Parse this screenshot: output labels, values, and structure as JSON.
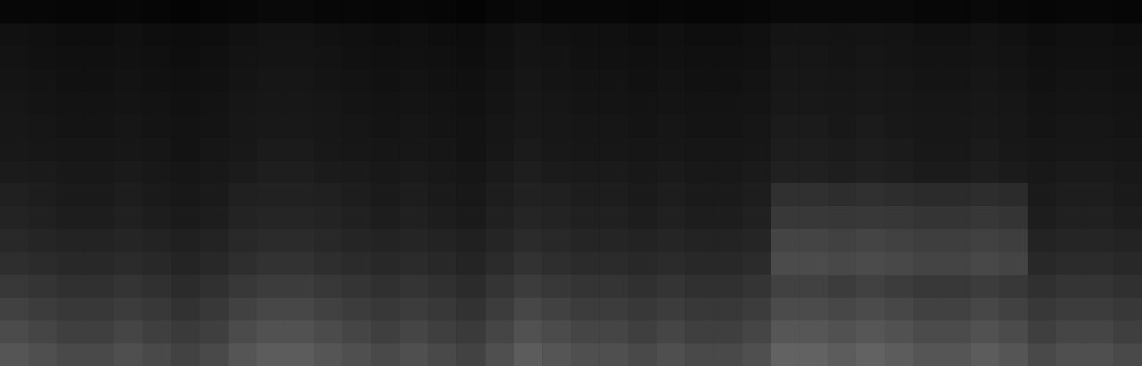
{
  "chart_data": {
    "type": "heatmap",
    "tick_labels": false,
    "color": "#909090",
    "color_range": [
      0,
      100
    ],
    "cells": [
      [
        59,
        55,
        51,
        51,
        55,
        51,
        46,
        51,
        59,
        64,
        64,
        59,
        55,
        51,
        55,
        51,
        46,
        55,
        64,
        59,
        55,
        55,
        51,
        55,
        51,
        51,
        55,
        68,
        68,
        64,
        68,
        64,
        59,
        59,
        64,
        59,
        51,
        55,
        55,
        51
      ],
      [
        52,
        48,
        44,
        44,
        48,
        44,
        40,
        44,
        52,
        56,
        56,
        52,
        48,
        44,
        48,
        44,
        40,
        48,
        56,
        52,
        48,
        48,
        44,
        48,
        44,
        44,
        48,
        60,
        60,
        56,
        60,
        56,
        52,
        52,
        56,
        52,
        44,
        48,
        48,
        44
      ],
      [
        45,
        42,
        39,
        39,
        42,
        39,
        35,
        39,
        45,
        49,
        49,
        45,
        42,
        39,
        42,
        39,
        35,
        42,
        49,
        45,
        42,
        42,
        39,
        42,
        39,
        39,
        42,
        52,
        52,
        49,
        52,
        49,
        45,
        45,
        49,
        45,
        39,
        42,
        42,
        39
      ],
      [
        39,
        36,
        33,
        33,
        36,
        33,
        30,
        33,
        39,
        42,
        42,
        39,
        36,
        33,
        36,
        33,
        30,
        36,
        42,
        39,
        36,
        36,
        33,
        36,
        33,
        33,
        36,
        45,
        45,
        42,
        45,
        42,
        39,
        39,
        42,
        39,
        33,
        36,
        36,
        33
      ],
      [
        32,
        30,
        28,
        28,
        30,
        28,
        25,
        28,
        32,
        35,
        35,
        32,
        30,
        28,
        30,
        28,
        25,
        30,
        35,
        32,
        30,
        30,
        28,
        30,
        28,
        28,
        30,
        52,
        52,
        50,
        52,
        50,
        47,
        47,
        50,
        47,
        28,
        30,
        30,
        28
      ],
      [
        28,
        26,
        24,
        24,
        26,
        24,
        22,
        24,
        28,
        30,
        30,
        28,
        26,
        24,
        26,
        24,
        22,
        26,
        30,
        28,
        26,
        26,
        24,
        26,
        24,
        24,
        26,
        47,
        47,
        45,
        47,
        45,
        43,
        43,
        45,
        43,
        24,
        26,
        26,
        24
      ],
      [
        24,
        22,
        20,
        20,
        22,
        20,
        18,
        20,
        24,
        26,
        26,
        24,
        22,
        20,
        22,
        20,
        18,
        22,
        26,
        24,
        22,
        22,
        20,
        22,
        20,
        20,
        22,
        39,
        39,
        38,
        39,
        38,
        36,
        36,
        38,
        36,
        20,
        22,
        22,
        20
      ],
      [
        22,
        20,
        18,
        18,
        20,
        18,
        17,
        18,
        22,
        23,
        23,
        22,
        20,
        18,
        20,
        18,
        17,
        20,
        23,
        22,
        20,
        20,
        18,
        20,
        18,
        18,
        20,
        33,
        33,
        31,
        33,
        31,
        30,
        30,
        31,
        30,
        18,
        20,
        20,
        18
      ],
      [
        19,
        18,
        17,
        17,
        18,
        17,
        15,
        17,
        19,
        21,
        21,
        19,
        18,
        17,
        18,
        17,
        15,
        18,
        21,
        19,
        18,
        18,
        17,
        18,
        17,
        17,
        18,
        22,
        22,
        21,
        22,
        21,
        19,
        19,
        21,
        19,
        17,
        18,
        18,
        17
      ],
      [
        17,
        16,
        15,
        15,
        16,
        15,
        13,
        15,
        17,
        19,
        19,
        17,
        16,
        15,
        16,
        15,
        13,
        16,
        19,
        17,
        16,
        16,
        15,
        16,
        15,
        15,
        16,
        20,
        20,
        19,
        20,
        19,
        17,
        17,
        19,
        17,
        15,
        16,
        16,
        15
      ],
      [
        16,
        15,
        14,
        14,
        15,
        14,
        13,
        14,
        16,
        17,
        17,
        16,
        15,
        14,
        15,
        14,
        13,
        15,
        17,
        16,
        15,
        15,
        14,
        15,
        14,
        14,
        15,
        19,
        19,
        17,
        19,
        17,
        16,
        16,
        17,
        16,
        14,
        15,
        15,
        14
      ],
      [
        15,
        14,
        13,
        13,
        14,
        13,
        12,
        13,
        15,
        16,
        16,
        15,
        14,
        13,
        14,
        13,
        12,
        14,
        16,
        15,
        14,
        14,
        13,
        14,
        13,
        13,
        14,
        17,
        17,
        16,
        17,
        16,
        15,
        15,
        16,
        15,
        13,
        14,
        14,
        13
      ],
      [
        14,
        13,
        12,
        12,
        13,
        12,
        11,
        12,
        14,
        15,
        15,
        14,
        13,
        12,
        13,
        12,
        11,
        13,
        15,
        14,
        13,
        13,
        12,
        13,
        12,
        12,
        13,
        16,
        16,
        15,
        16,
        15,
        14,
        14,
        15,
        14,
        12,
        13,
        13,
        12
      ],
      [
        13,
        12,
        11,
        11,
        12,
        11,
        10,
        11,
        13,
        14,
        14,
        13,
        12,
        11,
        12,
        11,
        10,
        12,
        14,
        13,
        12,
        12,
        11,
        12,
        11,
        11,
        12,
        15,
        15,
        14,
        15,
        14,
        13,
        13,
        14,
        13,
        11,
        12,
        12,
        11
      ],
      [
        12,
        11,
        10,
        10,
        11,
        10,
        9,
        10,
        12,
        13,
        13,
        12,
        11,
        10,
        11,
        10,
        9,
        11,
        13,
        12,
        11,
        11,
        10,
        11,
        10,
        10,
        11,
        14,
        14,
        13,
        14,
        13,
        12,
        12,
        13,
        12,
        10,
        11,
        11,
        10
      ],
      [
        5,
        5,
        4,
        4,
        5,
        4,
        3,
        4,
        5,
        6,
        6,
        5,
        5,
        4,
        5,
        4,
        3,
        5,
        6,
        5,
        5,
        5,
        4,
        5,
        4,
        4,
        5,
        6,
        6,
        6,
        6,
        6,
        5,
        5,
        6,
        5,
        4,
        5,
        5,
        4
      ]
    ]
  }
}
